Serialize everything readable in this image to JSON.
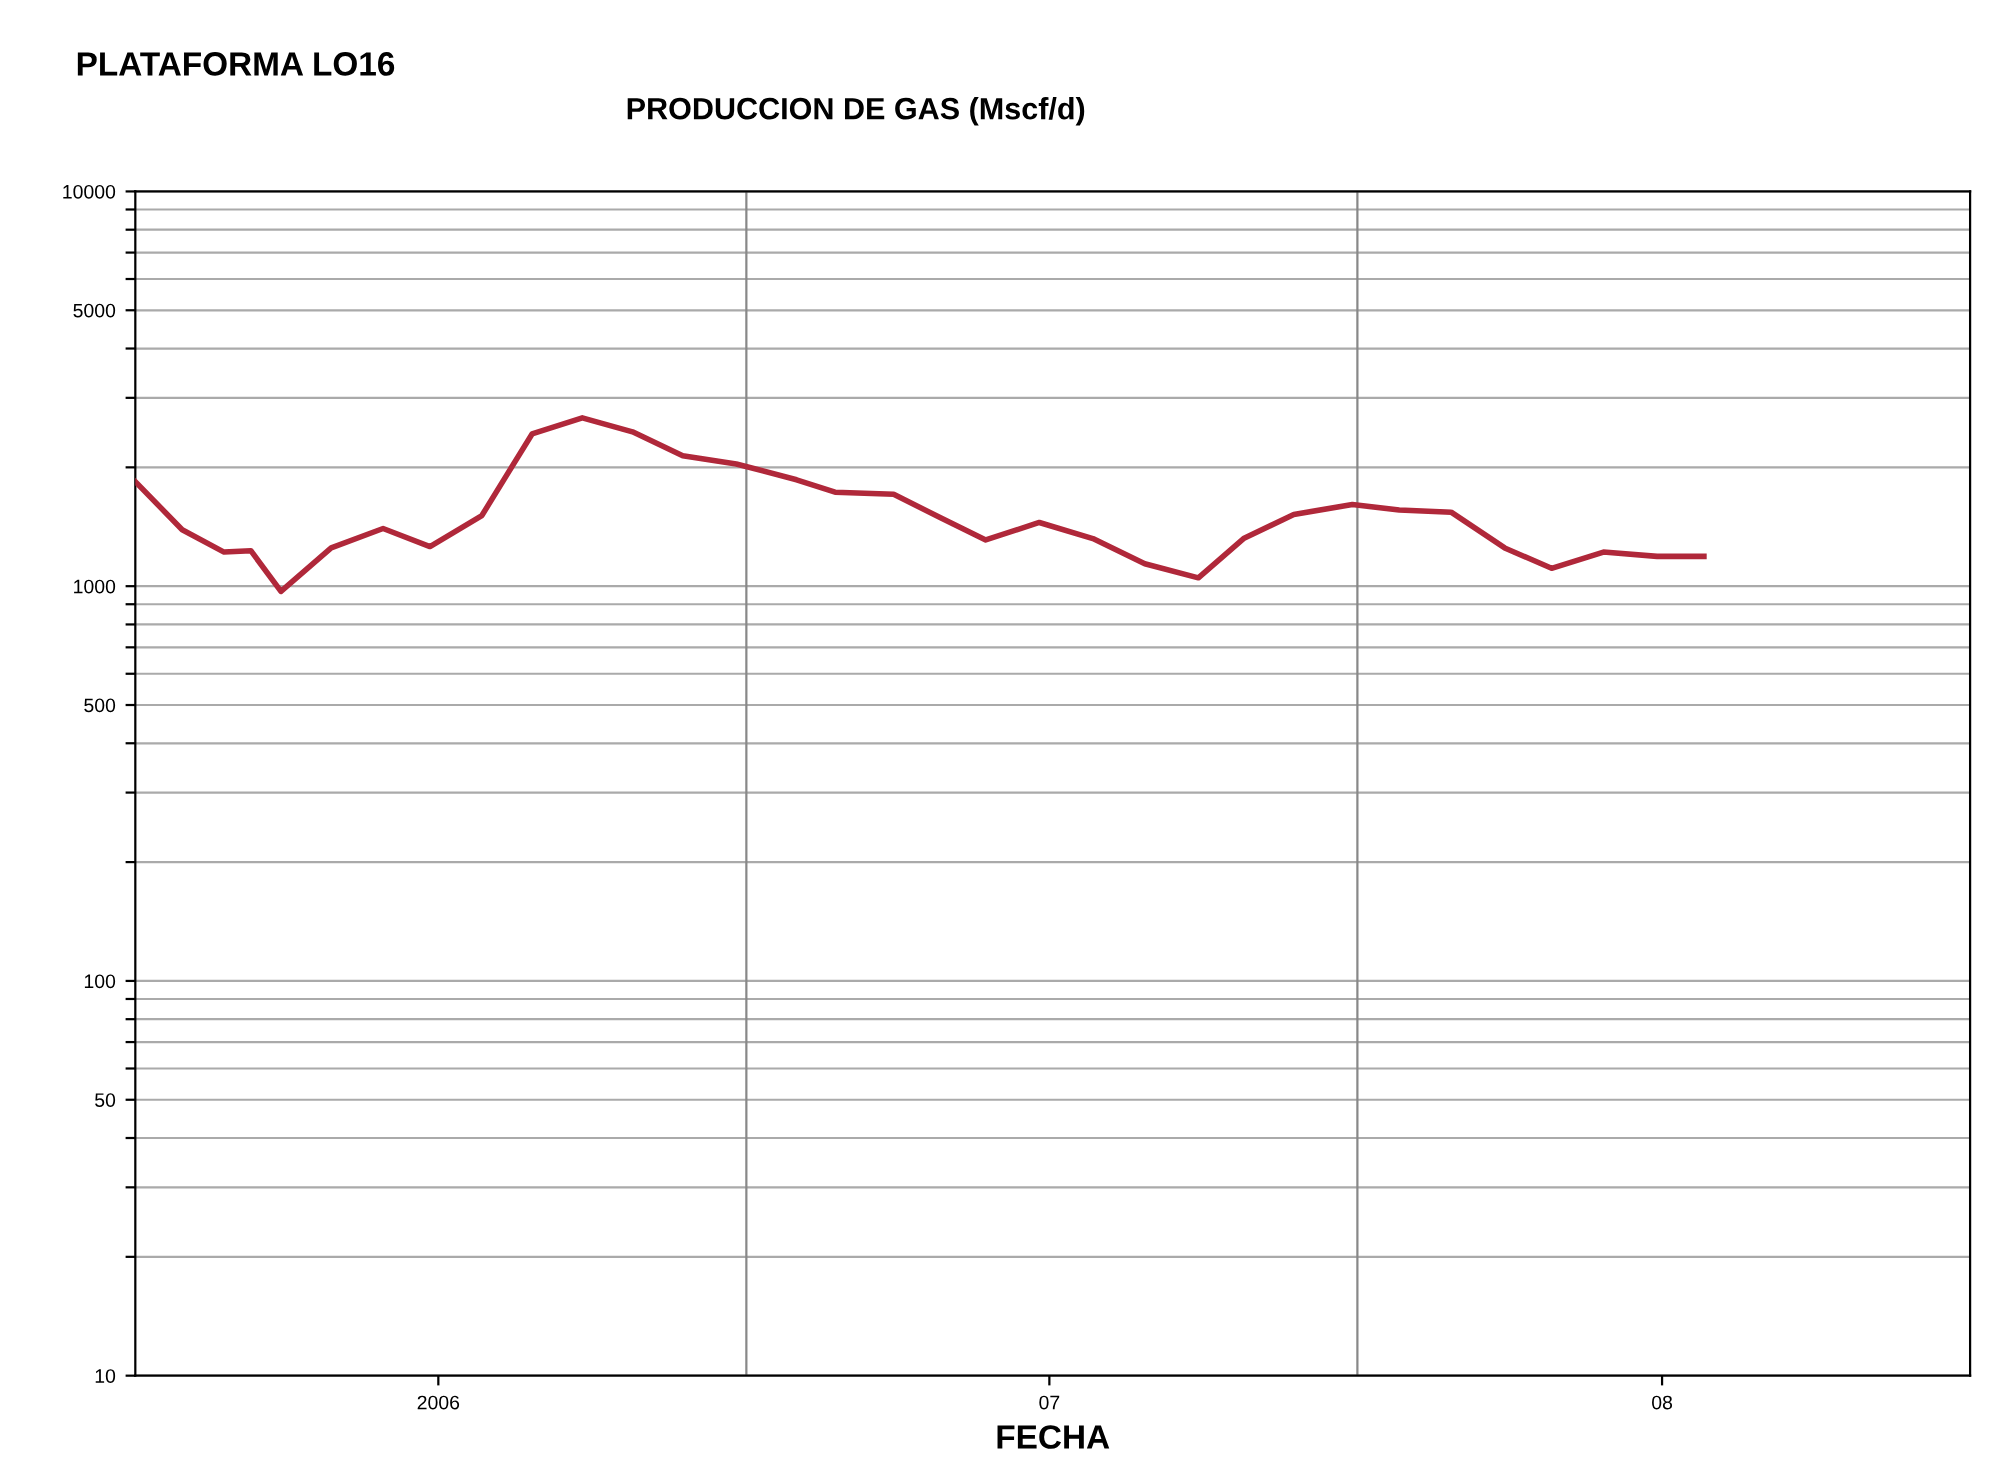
{
  "chart_data": {
    "type": "line",
    "title": "PLATAFORMA LO16",
    "subtitle": "PRODUCCION DE GAS (Mscf/d)",
    "xlabel": "FECHA",
    "x": [
      "2006-01-01",
      "2006-01-29",
      "2006-02-23",
      "2006-03-11",
      "2006-03-29",
      "2006-04-28",
      "2006-05-29",
      "2006-06-26",
      "2006-07-27",
      "2006-08-26",
      "2006-09-25",
      "2006-10-25",
      "2006-11-24",
      "2006-12-26",
      "2007-01-31",
      "2007-02-23",
      "2007-03-30",
      "2007-04-27",
      "2007-05-24",
      "2007-06-25",
      "2007-07-27",
      "2007-08-27",
      "2007-09-28",
      "2007-10-25",
      "2007-11-24",
      "2007-12-29",
      "2008-01-26",
      "2008-02-26",
      "2008-03-29",
      "2008-04-26",
      "2008-05-27",
      "2008-06-28",
      "2008-07-26"
    ],
    "series": [
      {
        "color": "#b0283a",
        "values": [
          1840,
          1390,
          1220,
          1230,
          970,
          1250,
          1400,
          1260,
          1510,
          2430,
          2670,
          2460,
          2140,
          2040,
          1860,
          1730,
          1710,
          1490,
          1310,
          1450,
          1320,
          1140,
          1050,
          1320,
          1520,
          1610,
          1560,
          1540,
          1250,
          1110,
          1220,
          1190,
          1190
        ]
      }
    ],
    "log": "y",
    "ylim": [
      10,
      10000
    ],
    "yticks": [
      10,
      {
        "value": 20,
        "label": null
      },
      {
        "value": 30,
        "label": null
      },
      {
        "value": 40,
        "label": null
      },
      50,
      {
        "value": 60,
        "label": null
      },
      {
        "value": 70,
        "label": null
      },
      {
        "value": 80,
        "label": null
      },
      {
        "value": 90,
        "label": null
      },
      100,
      {
        "value": 200,
        "label": null
      },
      {
        "value": 300,
        "label": null
      },
      {
        "value": 400,
        "label": null
      },
      500,
      {
        "value": 600,
        "label": null
      },
      {
        "value": 700,
        "label": null
      },
      {
        "value": 800,
        "label": null
      },
      {
        "value": 900,
        "label": null
      },
      1000,
      {
        "value": 2000,
        "label": null
      },
      {
        "value": 3000,
        "label": null
      },
      {
        "value": 4000,
        "label": null
      },
      5000,
      {
        "value": 6000,
        "label": null
      },
      {
        "value": 7000,
        "label": null
      },
      {
        "value": 8000,
        "label": null
      },
      {
        "value": 9000,
        "label": null
      },
      10000
    ],
    "xlim": [
      "2006-01-01",
      "2009-01-01"
    ],
    "xticks": [
      {
        "value": "2006-07-01",
        "label": "2006"
      },
      {
        "value": "2007-07-01",
        "label": "07"
      },
      {
        "value": "2008-07-01",
        "label": "08"
      }
    ],
    "ref_lines": [
      {
        "axis": "x",
        "value": "2007-01-01",
        "label": null,
        "color": "#888888"
      },
      {
        "axis": "x",
        "value": "2008-01-01",
        "label": null,
        "color": "#888888"
      }
    ],
    "grid": "y",
    "legend": false,
    "marker": "none",
    "line_style": "solid"
  }
}
